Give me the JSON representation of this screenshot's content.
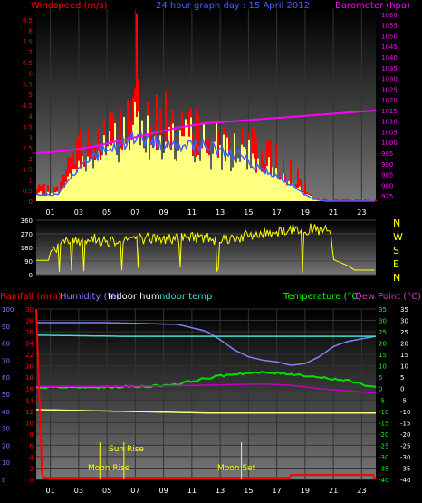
{
  "header": {
    "wind_label": "Windspeed (m/s)",
    "title": "24 hour graph day : 15 April 2012",
    "baro_label": "Barometer (hpa)"
  },
  "panel3_header": {
    "rain_label": "Rainfall (mm)",
    "humidity_label": "Humidity (%)",
    "indoor_hum_label": "Indoor hum",
    "indoor_temp_label": "Indoor temp",
    "temp_label": "Temperature (°C)",
    "dew_label": "Dew Point (°C)"
  },
  "annotations": {
    "sun_rise": "Sun Rise",
    "moon_rise": "Moon Rise",
    "moon_set": "Moon Set"
  },
  "compass": [
    "N",
    "W",
    "S",
    "E",
    "N"
  ],
  "colors": {
    "wind": "#ff0000",
    "gust_fill": "#ffff80",
    "baro": "#ff00ff",
    "avg_wind": "#4060ff",
    "direction": "#ffff00",
    "rain": "#ff0000",
    "humidity": "#8080ff",
    "indoor_hum": "#ffff80",
    "indoor_temp": "#40e0d0",
    "temperature": "#00e000",
    "dew_point": "#c000c0",
    "axis_right": "#00ff00"
  },
  "chart_data": [
    {
      "type": "bar",
      "title": "24 hour graph day : 15 April 2012",
      "x_ticks": [
        "01",
        "03",
        "05",
        "07",
        "09",
        "11",
        "13",
        "15",
        "17",
        "19",
        "21",
        "23"
      ],
      "xlim": [
        0,
        24
      ],
      "series": [
        {
          "name": "Windspeed (m/s)",
          "axis": "left",
          "ylim": [
            0,
            9
          ],
          "y_ticks": [
            "0",
            "0.5",
            "1",
            "1.5",
            "2",
            "2.5",
            "3",
            "3.5",
            "4",
            "4.5",
            "5",
            "5.5",
            "6",
            "6.5",
            "7",
            "7.5",
            "8",
            "8.5"
          ],
          "x": [
            1.5,
            2.5,
            3.5,
            4.5,
            5.5,
            6.5,
            7.0,
            7.5,
            8.5,
            9.5,
            10.5,
            11.5,
            12.5,
            13.5,
            14.5,
            15.5,
            16.5,
            17.5,
            18.5,
            19.5,
            20.5,
            21.5,
            22.5,
            23.5
          ],
          "gust_max": [
            0.8,
            3.0,
            4.0,
            4.0,
            4.5,
            5.5,
            8.8,
            5.5,
            5.5,
            5.0,
            4.5,
            4.5,
            4.0,
            4.0,
            3.5,
            3.5,
            3.0,
            2.5,
            1.5,
            0.2,
            0.1,
            0.1,
            0.1,
            0.1
          ],
          "avg": [
            0.3,
            1.2,
            1.8,
            2.2,
            2.4,
            2.7,
            3.0,
            2.9,
            2.7,
            2.6,
            2.5,
            2.6,
            2.4,
            2.2,
            2.0,
            1.6,
            1.3,
            1.0,
            0.5,
            0.1,
            0,
            0,
            0,
            0
          ]
        },
        {
          "name": "Barometer (hpa)",
          "axis": "right",
          "ylim": [
            972.5,
            1062.5
          ],
          "y_ticks": [
            "975",
            "980",
            "985",
            "990",
            "995",
            "1000",
            "1005",
            "1010",
            "1015",
            "1020",
            "1025",
            "1030",
            "1035",
            "1040",
            "1045",
            "1050",
            "1055",
            "1060"
          ],
          "x": [
            0,
            2,
            4,
            6,
            8,
            10,
            12,
            14,
            16,
            18,
            20,
            22,
            24
          ],
          "values": [
            995,
            996,
            998,
            1001,
            1004,
            1007,
            1009,
            1010,
            1011,
            1012,
            1013,
            1014,
            1015
          ]
        }
      ]
    },
    {
      "type": "line",
      "name": "Wind direction",
      "ylim": [
        0,
        360
      ],
      "y_ticks": [
        "0",
        "90",
        "180",
        "270",
        "360"
      ],
      "x": [
        0,
        0.9,
        1.0,
        2,
        3,
        4,
        5,
        6,
        7,
        8,
        9,
        10,
        11,
        12,
        13,
        14,
        15,
        16,
        17,
        18,
        19,
        20,
        20.8,
        21.0,
        22.0,
        22.5,
        24
      ],
      "values": [
        95,
        95,
        155,
        210,
        230,
        235,
        225,
        230,
        245,
        240,
        235,
        240,
        250,
        245,
        235,
        245,
        255,
        270,
        290,
        300,
        305,
        290,
        290,
        100,
        60,
        30,
        30
      ]
    },
    {
      "type": "line",
      "x_ticks": [
        "01",
        "03",
        "05",
        "07",
        "09",
        "11",
        "13",
        "15",
        "17",
        "19",
        "21",
        "23"
      ],
      "xlim": [
        0,
        24
      ],
      "left_ticks_rain": [
        "0",
        "2",
        "4",
        "6",
        "8",
        "10",
        "12",
        "14",
        "16",
        "18",
        "20",
        "22",
        "24",
        "26",
        "28",
        "30"
      ],
      "left_ticks_hum": [
        "0",
        "10",
        "20",
        "30",
        "40",
        "50",
        "60",
        "70",
        "80",
        "90",
        "100"
      ],
      "right_ticks_temp": [
        "35",
        "30",
        "25",
        "20",
        "15",
        "10",
        "5",
        "0",
        "-5",
        "-10",
        "-15",
        "-20",
        "-25",
        "-30",
        "-35",
        "-40"
      ],
      "series": [
        {
          "name": "Humidity (%)",
          "x": [
            0,
            5,
            10,
            12,
            13,
            14,
            15,
            16,
            17,
            18,
            19,
            20,
            21,
            22,
            24
          ],
          "values": [
            92,
            92,
            91,
            87,
            82,
            76,
            72,
            70,
            69,
            67,
            68,
            72,
            78,
            81,
            84
          ]
        },
        {
          "name": "Indoor hum",
          "x": [
            0,
            6,
            12,
            18,
            24
          ],
          "values": [
            41,
            40,
            39,
            39,
            39
          ]
        },
        {
          "name": "Indoor temp",
          "x": [
            0,
            6,
            12,
            18,
            24
          ],
          "values": [
            23.5,
            23.0,
            23.0,
            23.0,
            23.0
          ]
        },
        {
          "name": "Temperature (°C)",
          "x": [
            0,
            4,
            8,
            10,
            12,
            14,
            16,
            18,
            20,
            22,
            24
          ],
          "values": [
            0.5,
            0.5,
            1.0,
            2.0,
            4.5,
            6.5,
            7.0,
            6.5,
            5.0,
            3.5,
            0.5
          ]
        },
        {
          "name": "Dew Point (°C)",
          "x": [
            0,
            6,
            12,
            16,
            18,
            20,
            22,
            24
          ],
          "values": [
            1.0,
            1.0,
            1.5,
            2.0,
            1.5,
            0.0,
            -1.0,
            -2.0
          ]
        },
        {
          "name": "Rainfall (mm)",
          "x": [
            0,
            0.4,
            0.5,
            17.9,
            18.0,
            23.8,
            24
          ],
          "values": [
            30,
            1.3,
            0.3,
            0.3,
            0.8,
            0.8,
            0
          ]
        }
      ],
      "events": [
        {
          "label": "Sun Rise",
          "x": 6.2
        },
        {
          "label": "Moon Rise",
          "x": 4.5
        },
        {
          "label": "Moon Set",
          "x": 14.5
        }
      ]
    }
  ]
}
